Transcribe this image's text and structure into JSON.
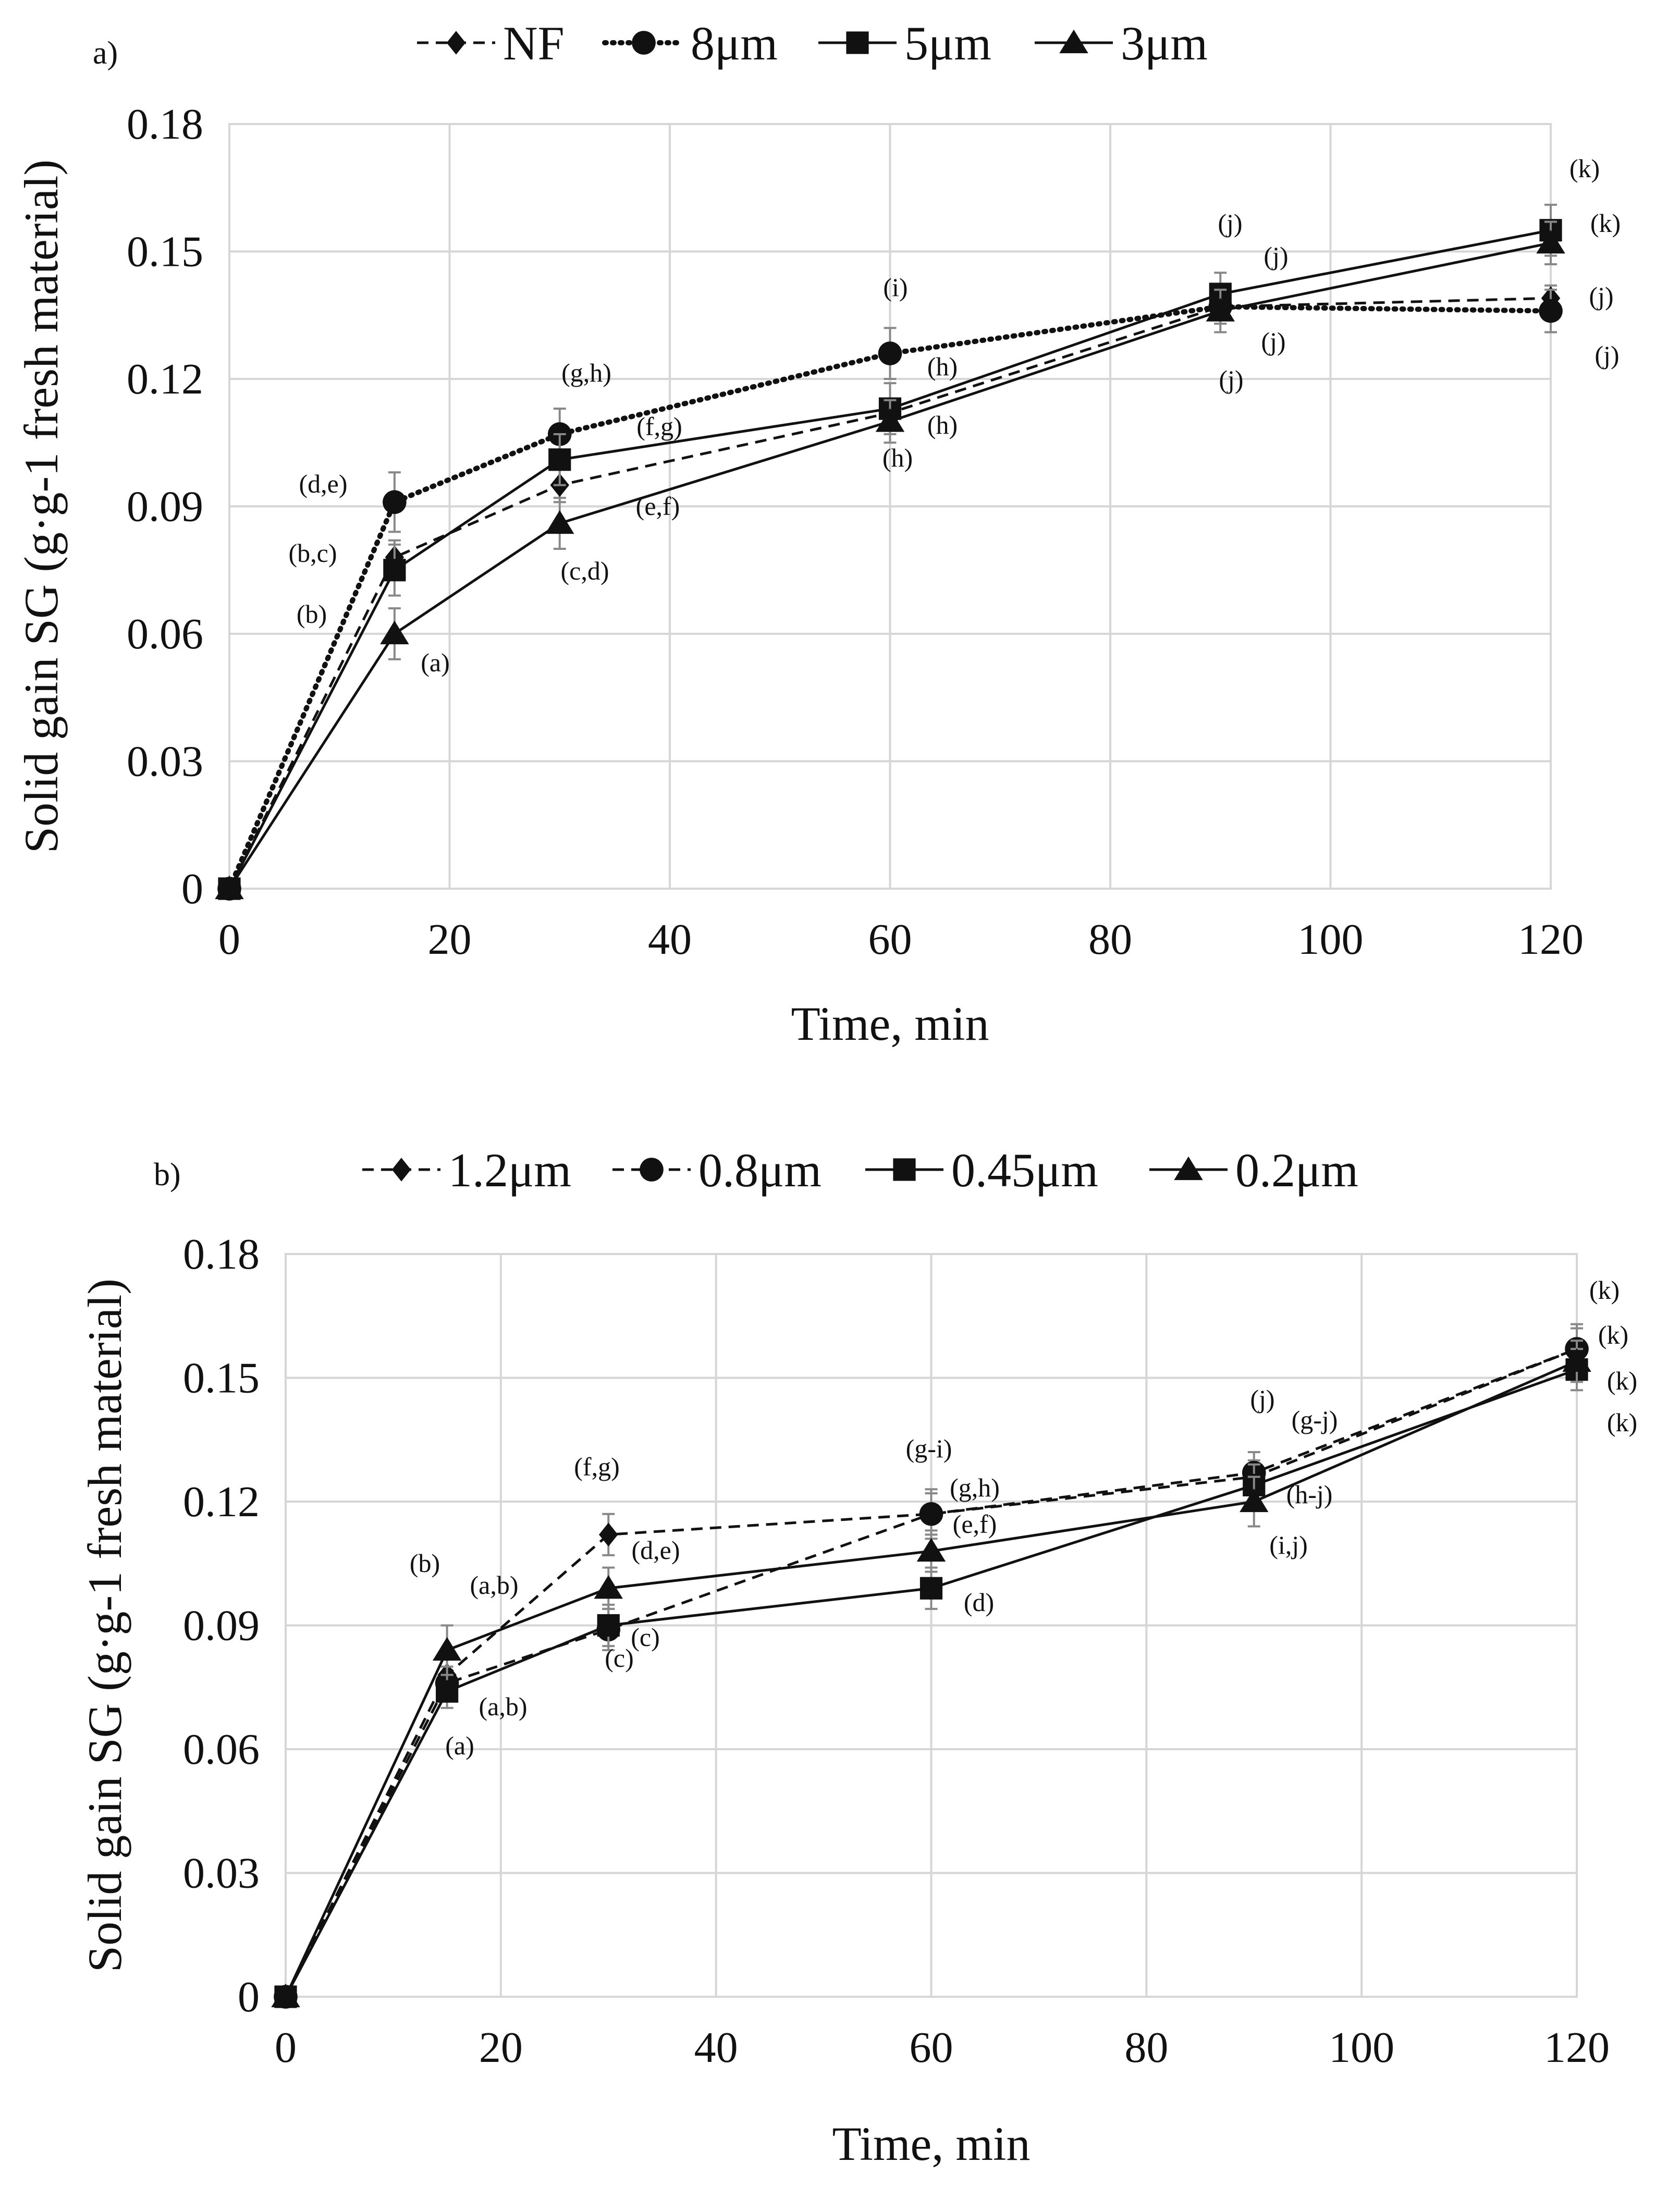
{
  "chart_data": [
    {
      "type": "line",
      "panel_label": "a)",
      "xlabel": "Time, min",
      "ylabel": "Solid gain SG (g·g-1 fresh material)",
      "xlim": [
        0,
        120
      ],
      "ylim": [
        0,
        0.18
      ],
      "x_ticks": [
        "0",
        "20",
        "40",
        "60",
        "80",
        "100",
        "120"
      ],
      "y_ticks": [
        "0",
        "0.03",
        "0.06",
        "0.09",
        "0.12",
        "0.15",
        "0.18"
      ],
      "grid": true,
      "legend_position": "top",
      "x": [
        0,
        15,
        30,
        60,
        90,
        120
      ],
      "series": [
        {
          "name": "NF",
          "marker": "diamond",
          "line": "dashed",
          "values": [
            0,
            0.078,
            0.095,
            0.112,
            0.137,
            0.139
          ],
          "errors": [
            0,
            0.004,
            0.004,
            0.003,
            0.004,
            0.003
          ]
        },
        {
          "name": "8μm",
          "marker": "circle",
          "line": "dotted",
          "values": [
            0,
            0.091,
            0.107,
            0.126,
            0.137,
            0.136
          ],
          "errors": [
            0,
            0.007,
            0.006,
            0.006,
            0.004,
            0.005
          ]
        },
        {
          "name": "5μm",
          "marker": "square",
          "line": "solid",
          "values": [
            0,
            0.075,
            0.101,
            0.113,
            0.14,
            0.155
          ],
          "errors": [
            0,
            0.006,
            0.006,
            0.006,
            0.005,
            0.006
          ]
        },
        {
          "name": "3μm",
          "marker": "triangle",
          "line": "solid",
          "values": [
            0,
            0.06,
            0.086,
            0.11,
            0.136,
            0.152
          ],
          "errors": [
            0,
            0.006,
            0.006,
            0.005,
            0.005,
            0.005
          ]
        }
      ],
      "annotations": [
        "(d,e)",
        "(b,c)",
        "(b)",
        "(a)",
        "(g,h)",
        "(f,g)",
        "(e,f)",
        "(c,d)",
        "(i)",
        "(h)",
        "(h)",
        "(h)",
        "(j)",
        "(j)",
        "(j)",
        "(j)",
        "(k)",
        "(k)",
        "(j)",
        "(j)"
      ]
    },
    {
      "type": "line",
      "panel_label": "b)",
      "xlabel": "Time, min",
      "ylabel": "Solid gain SG (g·g-1 fresh material)",
      "xlim": [
        0,
        120
      ],
      "ylim": [
        0,
        0.18
      ],
      "x_ticks": [
        "0",
        "20",
        "40",
        "60",
        "80",
        "100",
        "120"
      ],
      "y_ticks": [
        "0",
        "0.03",
        "0.06",
        "0.09",
        "0.12",
        "0.15",
        "0.18"
      ],
      "grid": true,
      "legend_position": "top",
      "x": [
        0,
        15,
        30,
        60,
        90,
        120
      ],
      "series": [
        {
          "name": "1.2μm",
          "marker": "diamond",
          "line": "dashed",
          "values": [
            0,
            0.078,
            0.112,
            0.117,
            0.126,
            0.157
          ],
          "errors": [
            0,
            0.004,
            0.005,
            0.005,
            0.004,
            0.005
          ]
        },
        {
          "name": "0.8μm",
          "marker": "circle",
          "line": "dashed",
          "values": [
            0,
            0.076,
            0.089,
            0.117,
            0.127,
            0.157
          ],
          "errors": [
            0,
            0.004,
            0.005,
            0.006,
            0.005,
            0.006
          ]
        },
        {
          "name": "0.45μm",
          "marker": "square",
          "line": "solid",
          "values": [
            0,
            0.074,
            0.09,
            0.099,
            0.124,
            0.152
          ],
          "errors": [
            0,
            0.004,
            0.005,
            0.005,
            0.005,
            0.005
          ]
        },
        {
          "name": "0.2μm",
          "marker": "triangle",
          "line": "solid",
          "values": [
            0,
            0.084,
            0.099,
            0.108,
            0.12,
            0.154
          ],
          "errors": [
            0,
            0.006,
            0.005,
            0.005,
            0.006,
            0.005
          ]
        }
      ],
      "annotations": [
        "(b)",
        "(a,b)",
        "(a,b)",
        "(a)",
        "(f,g)",
        "(d,e)",
        "(c)",
        "(c)",
        "(g-i)",
        "(g,h)",
        "(e,f)",
        "(d)",
        "(j)",
        "(g-j)",
        "(h-j)",
        "(i,j)",
        "(k)",
        "(k)",
        "(k)",
        "(k)"
      ]
    }
  ]
}
